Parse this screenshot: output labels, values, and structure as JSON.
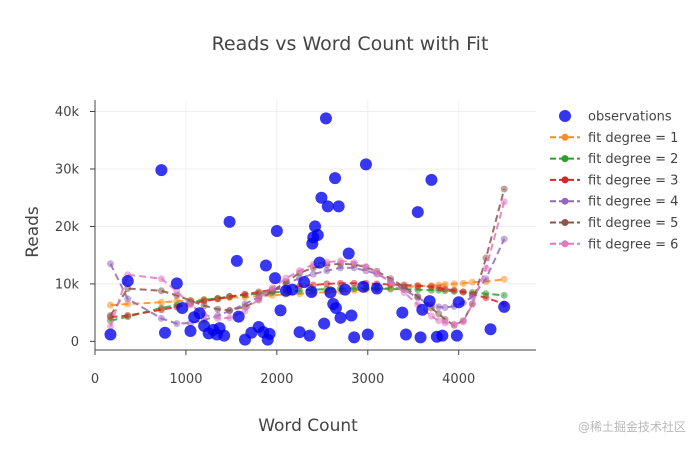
{
  "chart_data": {
    "type": "scatter",
    "title": "Reads vs Word Count with Fit",
    "xlabel": "Word Count",
    "ylabel": "Reads",
    "xlim": [
      0,
      4850
    ],
    "ylim": [
      -1500,
      42000
    ],
    "x_ticks": [
      0,
      1000,
      2000,
      3000,
      4000
    ],
    "x_tick_labels": [
      "0",
      "1000",
      "2000",
      "3000",
      "4000"
    ],
    "y_ticks": [
      0,
      10000,
      20000,
      30000,
      40000
    ],
    "y_tick_labels": [
      "0",
      "10k",
      "20k",
      "30k",
      "40k"
    ],
    "grid": true,
    "legend_position": "right",
    "watermark": "@稀土掘金技术社区",
    "fit_x": [
      170,
      360,
      730,
      900,
      1050,
      1200,
      1350,
      1480,
      1650,
      1800,
      1950,
      2100,
      2250,
      2400,
      2550,
      2700,
      2850,
      2980,
      3100,
      3250,
      3400,
      3550,
      3700,
      3780,
      3850,
      3950,
      4050,
      4150,
      4300,
      4500
    ],
    "observations": {
      "name": "observations",
      "color": "#0000ee",
      "x": [
        170,
        360,
        730,
        770,
        900,
        960,
        1050,
        1090,
        1150,
        1200,
        1250,
        1300,
        1340,
        1370,
        1420,
        1480,
        1560,
        1580,
        1650,
        1720,
        1800,
        1850,
        1880,
        1900,
        1920,
        1980,
        2000,
        2040,
        2100,
        2170,
        2250,
        2300,
        2360,
        2380,
        2390,
        2400,
        2420,
        2450,
        2470,
        2490,
        2520,
        2540,
        2560,
        2590,
        2620,
        2640,
        2650,
        2680,
        2700,
        2750,
        2790,
        2820,
        2850,
        2950,
        2980,
        3000,
        3100,
        3380,
        3420,
        3550,
        3580,
        3680,
        3760,
        3820,
        3980,
        4000,
        4350,
        4500,
        3700,
        3600
      ],
      "y": [
        1200,
        10500,
        29800,
        1500,
        10100,
        5800,
        1800,
        4200,
        4900,
        2700,
        1400,
        2000,
        1200,
        2300,
        1000,
        20800,
        14000,
        4300,
        300,
        1500,
        2500,
        1600,
        13200,
        300,
        1300,
        11000,
        19200,
        5400,
        8800,
        9000,
        1600,
        10300,
        1000,
        8600,
        17000,
        18100,
        20000,
        18500,
        13700,
        25000,
        3100,
        38800,
        23500,
        8500,
        6500,
        28400,
        5800,
        23500,
        4100,
        9000,
        15300,
        4500,
        700,
        9500,
        30800,
        1200,
        9200,
        5000,
        1200,
        22500,
        700,
        7000,
        800,
        1000,
        1000,
        6800,
        2100,
        6000,
        28100,
        5500
      ]
    },
    "series": [
      {
        "name": "fit degree = 1",
        "color": "#ff8c1a",
        "y": [
          6300,
          6500,
          6800,
          7000,
          7100,
          7300,
          7400,
          7600,
          7700,
          7900,
          8000,
          8200,
          8300,
          8400,
          8600,
          8700,
          8900,
          9000,
          9100,
          9300,
          9400,
          9600,
          9700,
          9800,
          9900,
          10000,
          10100,
          10300,
          10400,
          10800
        ]
      },
      {
        "name": "fit degree = 2",
        "color": "#2ca02c",
        "y": [
          3600,
          4300,
          5800,
          6300,
          6800,
          7200,
          7500,
          7800,
          8100,
          8300,
          8500,
          8700,
          8800,
          9000,
          9100,
          9200,
          9200,
          9200,
          9200,
          9100,
          9100,
          9000,
          8900,
          8900,
          8800,
          8700,
          8600,
          8500,
          8300,
          8000
        ]
      },
      {
        "name": "fit degree = 3",
        "color": "#d62728",
        "y": [
          4200,
          4500,
          5500,
          6000,
          6500,
          7000,
          7400,
          7800,
          8200,
          8600,
          9000,
          9300,
          9600,
          9800,
          10000,
          10100,
          10100,
          10100,
          10000,
          9900,
          9800,
          9700,
          9500,
          9300,
          9100,
          8900,
          8600,
          8200,
          7600,
          6500
        ]
      },
      {
        "name": "fit degree = 4",
        "color": "#9467bd",
        "y": [
          13500,
          7400,
          4000,
          3100,
          3200,
          3700,
          4500,
          5300,
          6500,
          7700,
          8900,
          10000,
          11000,
          11700,
          12300,
          12800,
          12800,
          12300,
          11700,
          10500,
          9000,
          7600,
          6300,
          6000,
          5900,
          6100,
          6700,
          7800,
          10900,
          17800
        ]
      },
      {
        "name": "fit degree = 5",
        "color": "#8c564b",
        "y": [
          4500,
          9200,
          8800,
          8000,
          7100,
          6200,
          5600,
          5400,
          6000,
          7200,
          8700,
          10400,
          11900,
          12800,
          13300,
          13500,
          13400,
          12900,
          12200,
          10900,
          9500,
          7800,
          5800,
          4800,
          3800,
          2800,
          3600,
          6500,
          14500,
          26500
        ]
      },
      {
        "name": "fit degree = 6",
        "color": "#e377c2",
        "y": [
          2600,
          11600,
          10900,
          8700,
          6400,
          4600,
          4000,
          4100,
          5300,
          7400,
          9300,
          11000,
          12300,
          13400,
          13800,
          14000,
          13700,
          13000,
          11900,
          10300,
          8500,
          6400,
          4400,
          3600,
          3200,
          3000,
          3400,
          6500,
          12700,
          24300
        ]
      }
    ]
  }
}
